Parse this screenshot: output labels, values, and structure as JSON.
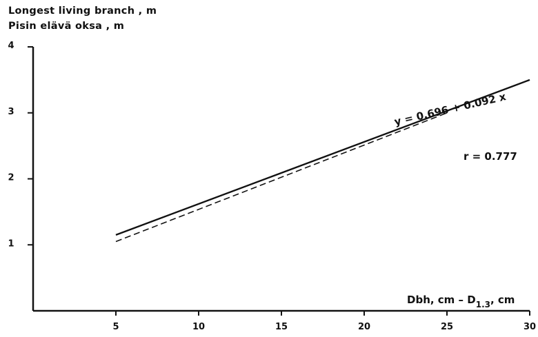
{
  "chart_data": {
    "type": "line",
    "ylabel_lines": [
      "Longest living  branch , m",
      "Pisin elävä  oksa , m"
    ],
    "xlabel": "Dbh, cm  –  D",
    "xlabel_sub": "1.3",
    "xlabel_tail": ", cm",
    "xlim": [
      0,
      30
    ],
    "ylim": [
      0,
      4
    ],
    "x_ticks": [
      5,
      10,
      15,
      20,
      25,
      30
    ],
    "y_ticks": [
      1,
      2,
      3,
      4
    ],
    "grid": false,
    "series": [
      {
        "style": "solid",
        "x": [
          5,
          30
        ],
        "y": [
          1.15,
          3.5
        ]
      },
      {
        "style": "dashed",
        "x": [
          5,
          25
        ],
        "y": [
          1.05,
          3.0
        ]
      }
    ],
    "equation": "y = 0.696 + 0.092 x",
    "r_label": "r = 0.777"
  }
}
